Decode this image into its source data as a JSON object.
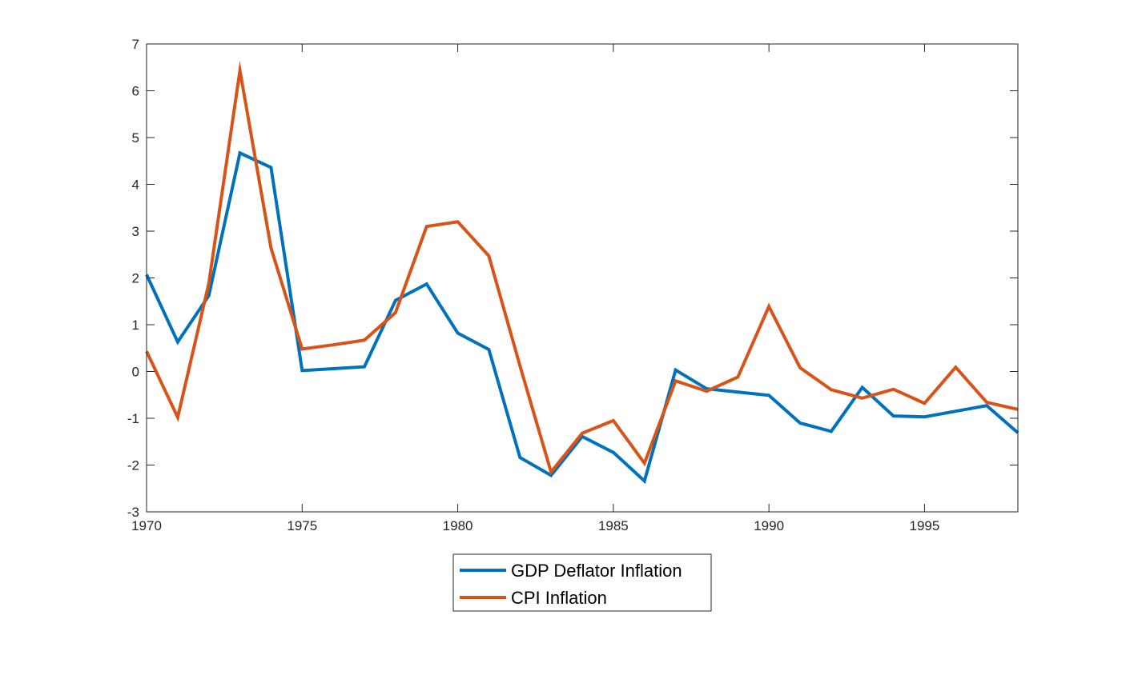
{
  "chart_data": {
    "type": "line",
    "title": "",
    "xlabel": "",
    "ylabel": "",
    "xlim": [
      1970,
      1998
    ],
    "ylim": [
      -3,
      7
    ],
    "x_ticks": [
      1970,
      1975,
      1980,
      1985,
      1990,
      1995
    ],
    "y_ticks": [
      -3,
      -2,
      -1,
      0,
      1,
      2,
      3,
      4,
      5,
      6,
      7
    ],
    "grid": false,
    "legend_position": "bottom-center, outside plot",
    "x": [
      1970,
      1971,
      1972,
      1973,
      1974,
      1975,
      1976,
      1977,
      1978,
      1979,
      1980,
      1981,
      1982,
      1983,
      1984,
      1985,
      1986,
      1987,
      1988,
      1989,
      1990,
      1991,
      1992,
      1993,
      1994,
      1995,
      1996,
      1997,
      1998
    ],
    "series": [
      {
        "name": "GDP Deflator Inflation",
        "color": "#0072BD",
        "values": [
          2.07,
          0.63,
          1.62,
          4.67,
          4.36,
          0.02,
          0.06,
          0.1,
          1.52,
          1.87,
          0.82,
          0.47,
          -1.84,
          -2.22,
          -1.39,
          -1.73,
          -2.34,
          0.03,
          -0.37,
          -0.44,
          -0.51,
          -1.1,
          -1.28,
          -0.34,
          -0.95,
          -0.97,
          -0.85,
          -0.73,
          -1.31
        ]
      },
      {
        "name": "CPI Inflation",
        "color": "#D95319",
        "values": [
          0.43,
          -0.98,
          1.88,
          6.43,
          2.64,
          0.48,
          0.57,
          0.67,
          1.26,
          3.1,
          3.2,
          2.47,
          0.12,
          -2.15,
          -1.32,
          -1.05,
          -1.96,
          -0.2,
          -0.42,
          -0.12,
          1.39,
          0.08,
          -0.39,
          -0.57,
          -0.38,
          -0.68,
          0.09,
          -0.66,
          -0.81
        ]
      }
    ]
  }
}
